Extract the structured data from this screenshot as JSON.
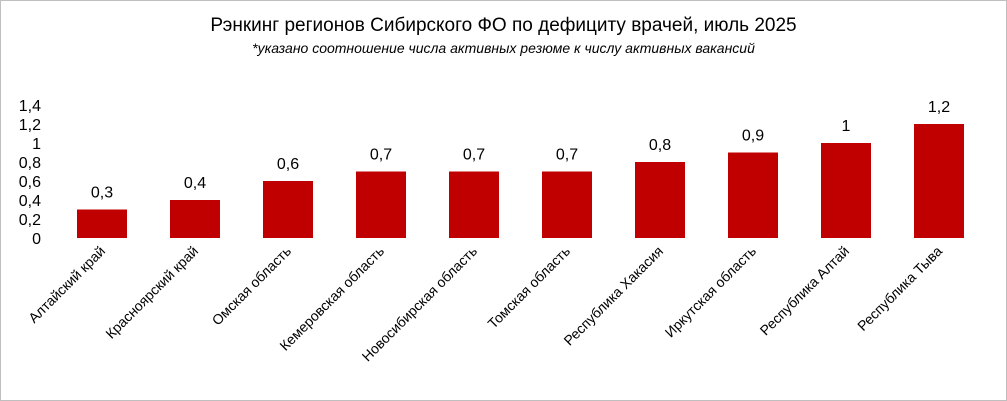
{
  "chart_data": {
    "type": "bar",
    "title": "Рэнкинг регионов Сибирского ФО по дефициту врачей, июль 2025",
    "subtitle": "*указано соотношение  числа активных резюме к числу активных вакансий",
    "categories": [
      "Алтайский край",
      "Красноярский край",
      "Омская область",
      "Кемеровская область",
      "Новосибирская область",
      "Томская область",
      "Республика Хакасия",
      "Иркутская область",
      "Республика Алтай",
      "Республика Тыва"
    ],
    "values": [
      0.3,
      0.4,
      0.6,
      0.7,
      0.7,
      0.7,
      0.8,
      0.9,
      1,
      1.2
    ],
    "data_labels": [
      "0,3",
      "0,4",
      "0,6",
      "0,7",
      "0,7",
      "0,7",
      "0,8",
      "0,9",
      "1",
      "1,2"
    ],
    "yticks": [
      "0",
      "0,2",
      "0,4",
      "0,6",
      "0,8",
      "1",
      "1,2",
      "1,4"
    ],
    "ylim": [
      0,
      1.4
    ],
    "xlabel": "",
    "ylabel": "",
    "grid": false,
    "legend": false,
    "bar_color": "#c00000"
  }
}
